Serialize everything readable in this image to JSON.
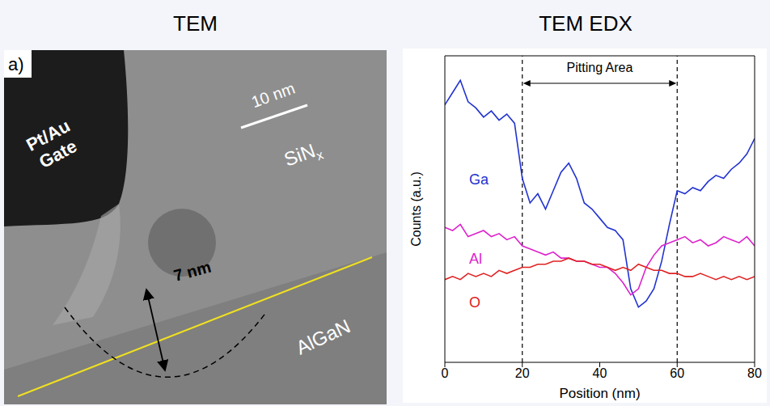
{
  "headings": [
    "TEM",
    "TEM EDX"
  ],
  "image_panel": {
    "panel_label": "a)",
    "gate_label": {
      "lines": [
        "Pt/Au",
        "Gate"
      ]
    },
    "layer_label": {
      "text": "SiN",
      "subscript": "x"
    },
    "substrate_label": "AlGaN",
    "scale_bar": "10 nm",
    "pit_depth": "7 nm"
  },
  "chart_data": {
    "type": "line",
    "xlabel": "Position (nm)",
    "ylabel": "Counts (a.u.)",
    "x": [
      0,
      2,
      4,
      6,
      8,
      10,
      12,
      14,
      16,
      18,
      20,
      22,
      24,
      26,
      28,
      30,
      32,
      34,
      36,
      38,
      40,
      42,
      44,
      46,
      48,
      50,
      52,
      54,
      56,
      58,
      60,
      62,
      64,
      66,
      68,
      70,
      72,
      74,
      76,
      78,
      80
    ],
    "xlim": [
      0,
      80
    ],
    "xticks": [
      0,
      20,
      40,
      60,
      80
    ],
    "ylim": [
      0,
      100
    ],
    "tick_labels": "x",
    "grid": false,
    "series": [
      {
        "name": "Ga",
        "color": "#2233d0",
        "values": [
          84,
          88,
          92,
          85,
          83,
          80,
          82,
          79,
          81,
          78,
          60,
          52,
          55,
          50,
          56,
          62,
          65,
          60,
          52,
          50,
          47,
          44,
          43,
          40,
          24,
          18,
          20,
          24,
          33,
          45,
          56,
          55,
          57,
          56,
          59,
          61,
          60,
          63,
          65,
          68,
          73
        ]
      },
      {
        "name": "Al",
        "color": "#dd22cc",
        "values": [
          44,
          43,
          45,
          41,
          42,
          43,
          41,
          42,
          40,
          41,
          38,
          37,
          36,
          35,
          36,
          34,
          34,
          33,
          33,
          32,
          31,
          31,
          29,
          26,
          22,
          24,
          31,
          35,
          38,
          39,
          40,
          41,
          39,
          40,
          38,
          39,
          41,
          40,
          39,
          41,
          38
        ]
      },
      {
        "name": "O",
        "color": "#e02222",
        "values": [
          27,
          28,
          27,
          29,
          28,
          29,
          28,
          30,
          29,
          30,
          31,
          31,
          32,
          32,
          33,
          33,
          34,
          33,
          33,
          32,
          32,
          31,
          30,
          31,
          30,
          32,
          31,
          30,
          30,
          29,
          29,
          28,
          28,
          29,
          28,
          27,
          28,
          27,
          28,
          27,
          28
        ]
      }
    ],
    "annotations": [
      {
        "text": "Pitting Area",
        "x": [
          20,
          60
        ]
      }
    ]
  }
}
